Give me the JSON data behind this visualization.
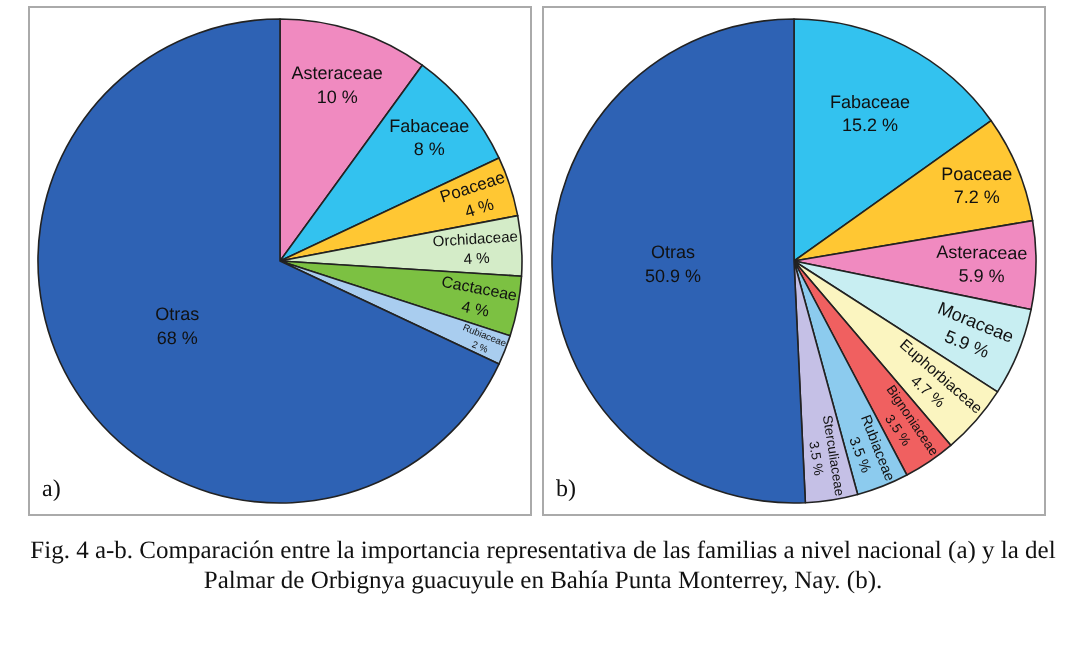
{
  "chart_data": [
    {
      "type": "pie",
      "categories": [
        "Asteraceae",
        "Fabaceae",
        "Poaceae",
        "Orchidaceae",
        "Cactaceae",
        "Rubiaceae",
        "Otras"
      ],
      "values": [
        10,
        8,
        4,
        4,
        4,
        2,
        68
      ],
      "value_labels": [
        "10 %",
        "8 %",
        "4 %",
        "4 %",
        "4 %",
        "2 %",
        "68 %"
      ],
      "colors": [
        "#f08ac0",
        "#33c2ef",
        "#ffc733",
        "#d4ecc8",
        "#7cc142",
        "#a9cdef",
        "#2e62b4"
      ],
      "annotations": [
        "a)"
      ]
    },
    {
      "type": "pie",
      "categories": [
        "Fabaceae",
        "Poaceae",
        "Asteraceae",
        "Moraceae",
        "Euphorbiaceae",
        "Bignoniaceae",
        "Rubiaceae",
        "Sterculiaceae",
        "Otras"
      ],
      "values": [
        15.2,
        7.2,
        5.9,
        5.9,
        4.7,
        3.5,
        3.5,
        3.5,
        50.9
      ],
      "value_labels": [
        "15.2 %",
        "7.2 %",
        "5.9 %",
        "5.9 %",
        "4.7 %",
        "3.5 %",
        "3.5 %",
        "3.5 %",
        "50.9 %"
      ],
      "colors": [
        "#33c2ef",
        "#ffc733",
        "#f08ac0",
        "#c8eef2",
        "#fbf5c0",
        "#f06060",
        "#8ccbee",
        "#c5c0e6",
        "#2e62b4"
      ],
      "annotations": [
        "b)",
        "Fig. 4 a-b. Comparación entre la importancia representativa de las familias a nivel nacional (a) y la del Palmar de Orbignya guacuyule en Bahía Punta Monterrey, Nay. (b)."
      ]
    }
  ]
}
